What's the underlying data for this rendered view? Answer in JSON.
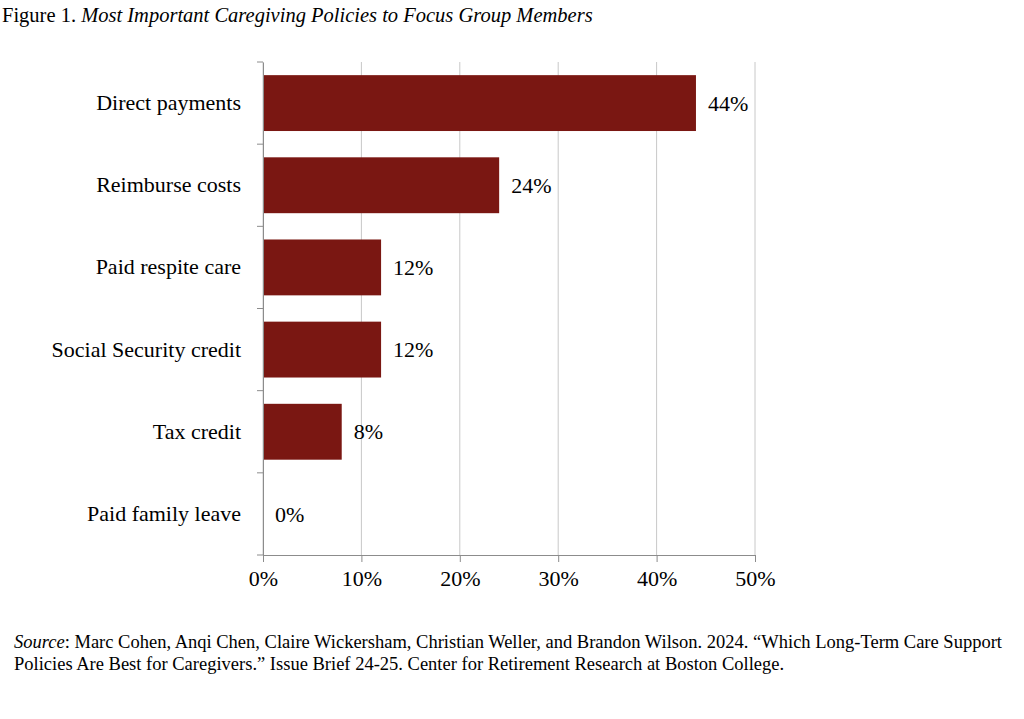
{
  "chart_data": {
    "type": "bar",
    "orientation": "horizontal",
    "title": "Figure 1. Most Important Caregiving Policies to Focus Group Members",
    "categories": [
      "Direct payments",
      "Reimburse costs",
      "Paid respite care",
      "Social Security credit",
      "Tax credit",
      "Paid family leave"
    ],
    "values": [
      44,
      24,
      12,
      12,
      8,
      0
    ],
    "value_labels": [
      "44%",
      "24%",
      "12%",
      "12%",
      "8%",
      "0%"
    ],
    "data_labels": true,
    "color": "#7a1712",
    "xlim": [
      0,
      50
    ],
    "xticks": [
      {
        "value": 0,
        "label": "0%"
      },
      {
        "value": 10,
        "label": "10%"
      },
      {
        "value": 20,
        "label": "20%"
      },
      {
        "value": 30,
        "label": "30%"
      },
      {
        "value": 40,
        "label": "40%"
      },
      {
        "value": 50,
        "label": "50%"
      }
    ],
    "grid": true,
    "source": "Source: Marc Cohen, Anqi Chen, Claire Wickersham, Christian Weller, and Brandon Wilson. 2024. “Which Long-Term Care Support Policies Are Best for Caregivers.” Issue Brief 24-25. Center for Retirement Research at Boston College."
  }
}
